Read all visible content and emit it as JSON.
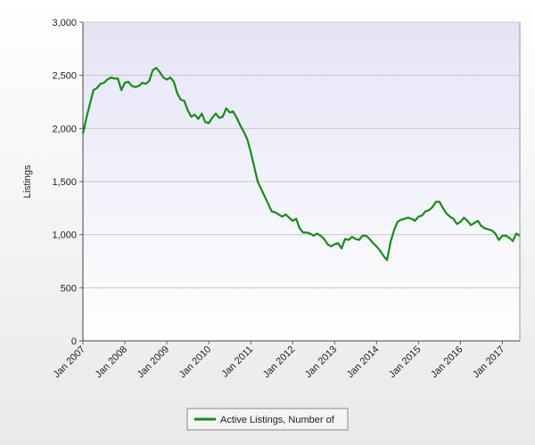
{
  "chart_data": {
    "type": "line",
    "y_label": "Listings",
    "categories": [
      "Jan 2007",
      null,
      null,
      null,
      null,
      null,
      null,
      null,
      null,
      null,
      null,
      null,
      "Jan 2008",
      null,
      null,
      null,
      null,
      null,
      null,
      null,
      null,
      null,
      null,
      null,
      "Jan 2009",
      null,
      null,
      null,
      null,
      null,
      null,
      null,
      null,
      null,
      null,
      null,
      "Jan 2010",
      null,
      null,
      null,
      null,
      null,
      null,
      null,
      null,
      null,
      null,
      null,
      "Jan 2011",
      null,
      null,
      null,
      null,
      null,
      null,
      null,
      null,
      null,
      null,
      null,
      "Jan 2012",
      null,
      null,
      null,
      null,
      null,
      null,
      null,
      null,
      null,
      null,
      null,
      "Jan 2013",
      null,
      null,
      null,
      null,
      null,
      null,
      null,
      null,
      null,
      null,
      null,
      "Jan 2014",
      null,
      null,
      null,
      null,
      null,
      null,
      null,
      null,
      null,
      null,
      null,
      "Jan 2015",
      null,
      null,
      null,
      null,
      null,
      null,
      null,
      null,
      null,
      null,
      null,
      "Jan 2016",
      null,
      null,
      null,
      null,
      null,
      null,
      null,
      null,
      null,
      null,
      null,
      "Jan 2017",
      null,
      null,
      null,
      null,
      null
    ],
    "series": [
      {
        "name": "Active Listings, Number of",
        "color": "#1a8a1a",
        "values": [
          1950,
          2100,
          2230,
          2360,
          2380,
          2420,
          2430,
          2460,
          2480,
          2470,
          2470,
          2360,
          2430,
          2440,
          2400,
          2390,
          2400,
          2430,
          2420,
          2450,
          2550,
          2570,
          2530,
          2480,
          2460,
          2480,
          2440,
          2330,
          2270,
          2260,
          2170,
          2110,
          2130,
          2090,
          2140,
          2060,
          2050,
          2100,
          2140,
          2100,
          2110,
          2190,
          2150,
          2160,
          2100,
          2030,
          1970,
          1900,
          1780,
          1640,
          1500,
          1430,
          1360,
          1290,
          1220,
          1210,
          1190,
          1170,
          1190,
          1160,
          1130,
          1150,
          1060,
          1020,
          1020,
          1010,
          990,
          1010,
          990,
          960,
          910,
          890,
          910,
          920,
          870,
          960,
          950,
          980,
          960,
          950,
          990,
          990,
          960,
          920,
          890,
          850,
          800,
          760,
          930,
          1040,
          1120,
          1140,
          1150,
          1160,
          1150,
          1130,
          1170,
          1180,
          1220,
          1230,
          1260,
          1310,
          1310,
          1250,
          1200,
          1170,
          1150,
          1100,
          1120,
          1160,
          1130,
          1090,
          1110,
          1130,
          1080,
          1060,
          1050,
          1040,
          1010,
          950,
          990,
          990,
          970,
          940,
          1010,
          990
        ]
      }
    ],
    "ylim": [
      0,
      3000
    ],
    "yticks": [
      0,
      500,
      {
        "value": 1000,
        "label": "1,000"
      },
      {
        "value": 1500,
        "label": "1,500"
      },
      {
        "value": 2000,
        "label": "2,000"
      },
      {
        "value": 2500,
        "label": "2,500"
      },
      {
        "value": 3000,
        "label": "3,000"
      }
    ],
    "grid": true
  }
}
